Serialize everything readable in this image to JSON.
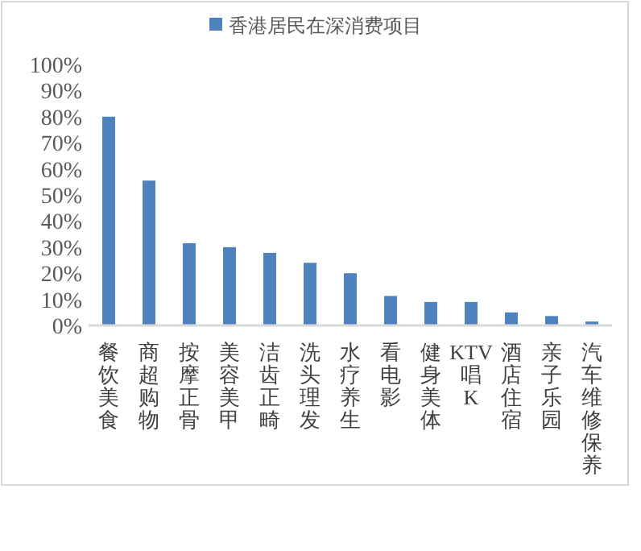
{
  "chart_data": {
    "type": "bar",
    "categories": [
      "餐饮美食",
      "商超购物",
      "按摩正骨",
      "美容美甲",
      "洁齿正畸",
      "洗头理发",
      "水疗养生",
      "看电影",
      "健身美体",
      "KTV唱K",
      "酒店住宿",
      "亲子乐园",
      "汽车维修保养"
    ],
    "series": [
      {
        "name": "香港居民在深消费项目",
        "color": "#4f81bd",
        "values": [
          80,
          55.5,
          31.5,
          30,
          27.8,
          24,
          20,
          11.3,
          9,
          9,
          5,
          3.6,
          1.5
        ]
      }
    ],
    "ylim": [
      0,
      100
    ],
    "yticks": [
      {
        "value": 0,
        "label": "0%"
      },
      {
        "value": 10,
        "label": "10%"
      },
      {
        "value": 20,
        "label": "20%"
      },
      {
        "value": 30,
        "label": "30%"
      },
      {
        "value": 40,
        "label": "40%"
      },
      {
        "value": 50,
        "label": "50%"
      },
      {
        "value": 60,
        "label": "60%"
      },
      {
        "value": 70,
        "label": "70%"
      },
      {
        "value": 80,
        "label": "80%"
      },
      {
        "value": 90,
        "label": "90%"
      },
      {
        "value": 100,
        "label": "100%"
      }
    ],
    "grid": false,
    "legend": "top"
  }
}
